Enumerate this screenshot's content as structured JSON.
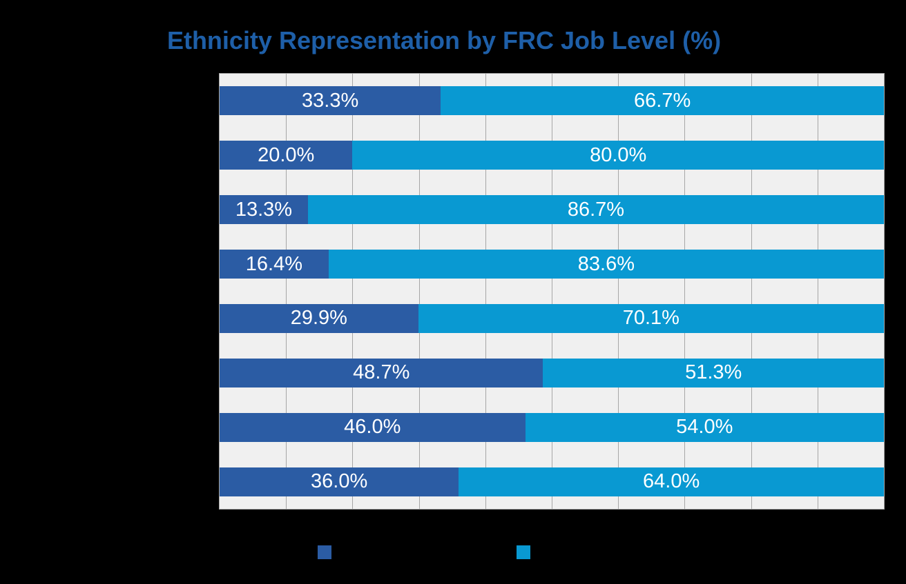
{
  "title": {
    "text": "Ethnicity Representation by FRC Job Level (%)",
    "color": "#1E5FA8"
  },
  "chart_data": {
    "type": "bar",
    "orientation": "horizontal",
    "stacked": true,
    "title": "Ethnicity Representation by FRC Job Level (%)",
    "xlim": [
      0,
      100
    ],
    "grid": {
      "vertical": true,
      "interval_pct": 10
    },
    "plot_background": "#F0F0F0",
    "gridline_color": "#A6A6A6",
    "data_label_color": "#FFFFFF",
    "series": [
      {
        "name": "dark-blue-segment",
        "color": "#2B5CA4",
        "values": [
          33.3,
          20.0,
          13.3,
          16.4,
          29.9,
          48.7,
          46.0,
          36.0
        ]
      },
      {
        "name": "light-blue-segment",
        "color": "#0999D2",
        "values": [
          66.7,
          80.0,
          86.7,
          83.6,
          70.1,
          51.3,
          54.0,
          64.0
        ]
      }
    ],
    "data_labels": [
      [
        "33.3%",
        "66.7%"
      ],
      [
        "20.0%",
        "80.0%"
      ],
      [
        "13.3%",
        "86.7%"
      ],
      [
        "16.4%",
        "83.6%"
      ],
      [
        "29.9%",
        "70.1%"
      ],
      [
        "48.7%",
        "51.3%"
      ],
      [
        "46.0%",
        "54.0%"
      ],
      [
        "36.0%",
        "64.0%"
      ]
    ],
    "legend": {
      "position": "bottom",
      "swatches": [
        {
          "name": "dark-blue-swatch",
          "color": "#2B5CA4"
        },
        {
          "name": "light-blue-swatch",
          "color": "#0999D2"
        }
      ]
    }
  }
}
